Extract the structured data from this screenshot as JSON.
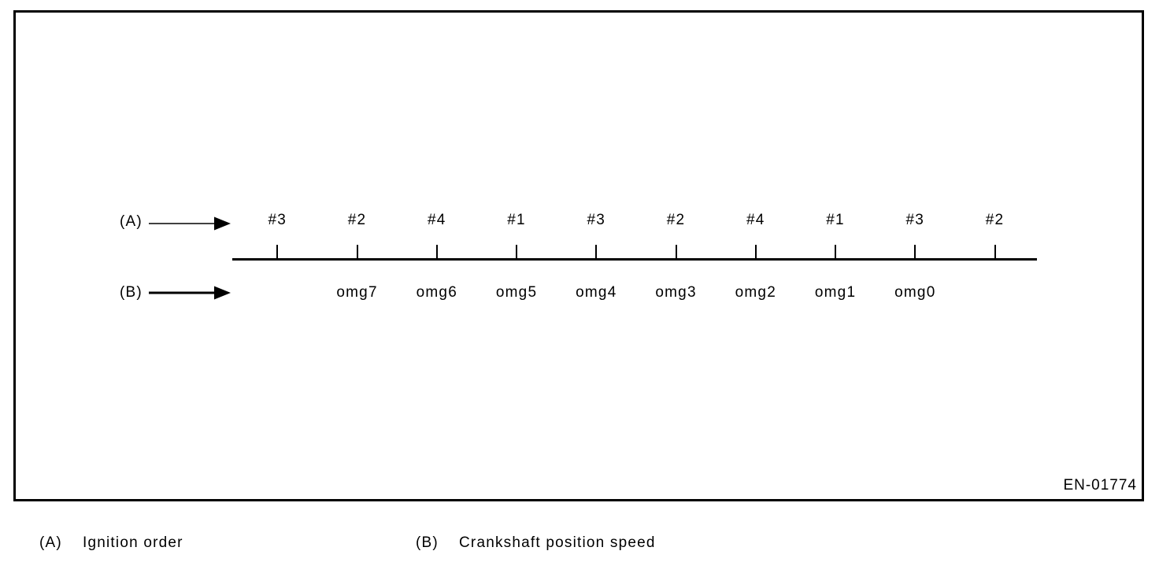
{
  "figure": {
    "code": "EN-01774",
    "row_a_key": "(A)",
    "row_b_key": "(B)",
    "ignition_order": [
      "#3",
      "#2",
      "#4",
      "#1",
      "#3",
      "#2",
      "#4",
      "#1",
      "#3",
      "#2"
    ],
    "crank_speed_labels": [
      "omg7",
      "omg6",
      "omg5",
      "omg4",
      "omg3",
      "omg2",
      "omg1",
      "omg0"
    ]
  },
  "legend": {
    "a_key": "(A)",
    "a_text": "Ignition order",
    "b_key": "(B)",
    "b_text": "Crankshaft position speed"
  },
  "icons": {
    "row_a_arrow": "arrow-right",
    "row_b_arrow": "arrow-right"
  },
  "colors": {
    "ink": "#000000",
    "background": "#ffffff"
  }
}
